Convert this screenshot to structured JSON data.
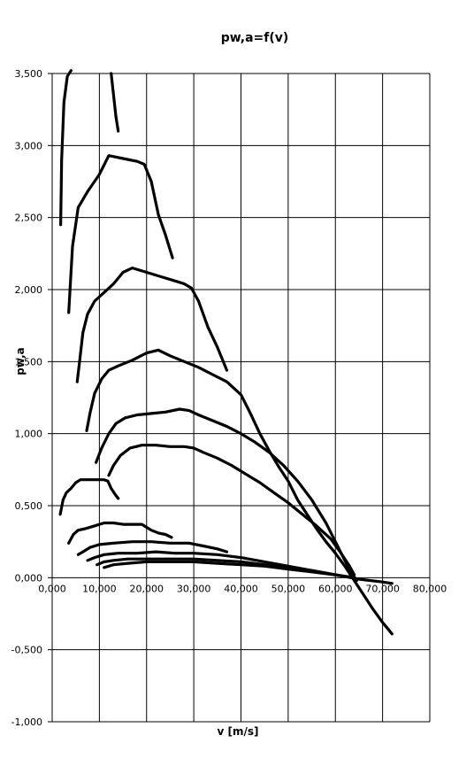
{
  "chart_data": {
    "type": "line",
    "title": "pw,a=f(v)",
    "xlabel": "v [m/s]",
    "ylabel": "pw,a",
    "xlim": [
      0,
      80
    ],
    "ylim": [
      -1,
      3.5
    ],
    "x_ticks": [
      "0,000",
      "10,000",
      "20,000",
      "30,000",
      "40,000",
      "50,000",
      "60,000",
      "70,000",
      "80,000"
    ],
    "y_ticks": [
      "3,500",
      "3,000",
      "2,500",
      "2,000",
      "1,500",
      "1,000",
      "0,500",
      "0,000",
      "-0,500",
      "-1,000"
    ],
    "grid": true,
    "legend": "none",
    "series": [
      {
        "color": "#000000",
        "x": [
          1.8,
          2.0,
          2.5,
          3.2,
          4.0
        ],
        "y": [
          2.45,
          2.9,
          3.3,
          3.48,
          3.52
        ]
      },
      {
        "color": "#000000",
        "x": [
          12.5,
          13.0,
          13.5,
          14.0
        ],
        "y": [
          3.5,
          3.35,
          3.2,
          3.1
        ]
      },
      {
        "color": "#000000",
        "x": [
          3.5,
          4.3,
          5.5,
          7.5,
          10.0,
          12.0,
          15.0,
          18.0,
          19.5,
          21.0,
          22.5,
          24.0,
          25.5
        ],
        "y": [
          1.84,
          2.3,
          2.57,
          2.68,
          2.8,
          2.93,
          2.91,
          2.89,
          2.87,
          2.75,
          2.52,
          2.38,
          2.22
        ]
      },
      {
        "color": "#000000",
        "x": [
          5.3,
          5.8,
          6.5,
          7.5,
          9.0,
          11.0,
          13.0,
          15.0,
          17.0,
          20.0,
          23.0,
          26.0,
          28.0,
          29.5,
          31.0,
          33.0,
          35.0,
          37.0
        ],
        "y": [
          1.36,
          1.5,
          1.7,
          1.83,
          1.92,
          1.98,
          2.04,
          2.12,
          2.15,
          2.12,
          2.09,
          2.06,
          2.04,
          2.01,
          1.92,
          1.74,
          1.6,
          1.44
        ]
      },
      {
        "color": "#000000",
        "x": [
          7.3,
          8.0,
          9.0,
          10.5,
          12.0,
          14.0,
          17.0,
          20.0,
          22.5,
          25.0,
          28.0,
          31.0,
          34.0,
          37.0,
          40.0,
          42.0,
          44.0,
          46.0,
          48.0,
          50.0,
          52.0,
          54.0,
          56.0,
          58.0,
          60.0,
          62.0,
          64.0,
          66.0,
          68.0,
          70.0,
          72.0
        ],
        "y": [
          1.02,
          1.14,
          1.28,
          1.38,
          1.44,
          1.47,
          1.51,
          1.56,
          1.58,
          1.54,
          1.5,
          1.46,
          1.41,
          1.36,
          1.27,
          1.14,
          1.0,
          0.88,
          0.77,
          0.67,
          0.54,
          0.44,
          0.34,
          0.25,
          0.17,
          0.08,
          -0.02,
          -0.12,
          -0.22,
          -0.31,
          -0.39
        ]
      },
      {
        "color": "#000000",
        "x": [
          9.3,
          10.5,
          12.0,
          13.5,
          15.5,
          18.0,
          21.0,
          24.0,
          27.0,
          29.0,
          31.0,
          34.0,
          37.0,
          40.0,
          43.0,
          46.0,
          49.0,
          52.0,
          55.0,
          58.0,
          60.0,
          62.0,
          63.5,
          64.5
        ],
        "y": [
          0.8,
          0.9,
          1.0,
          1.07,
          1.11,
          1.13,
          1.14,
          1.15,
          1.17,
          1.16,
          1.13,
          1.09,
          1.05,
          1.0,
          0.94,
          0.87,
          0.78,
          0.67,
          0.54,
          0.38,
          0.25,
          0.12,
          0.03,
          -0.02
        ]
      },
      {
        "color": "#000000",
        "x": [
          12.0,
          13.0,
          14.5,
          16.5,
          19.0,
          22.0,
          25.0,
          28.0,
          30.0,
          32.0,
          35.0,
          38.0,
          41.0,
          44.0,
          47.0,
          50.0,
          53.0,
          56.0,
          59.0,
          61.0,
          63.0,
          64.0
        ],
        "y": [
          0.71,
          0.78,
          0.85,
          0.9,
          0.92,
          0.92,
          0.91,
          0.91,
          0.9,
          0.87,
          0.83,
          0.78,
          0.72,
          0.66,
          0.59,
          0.52,
          0.44,
          0.36,
          0.27,
          0.18,
          0.08,
          0.02
        ]
      },
      {
        "color": "#000000",
        "x": [
          1.7,
          2.3,
          3.0,
          4.0,
          5.0,
          6.0,
          7.0,
          8.5,
          10.0,
          11.0,
          11.8,
          12.5,
          13.3,
          14.0
        ],
        "y": [
          0.44,
          0.54,
          0.59,
          0.62,
          0.66,
          0.68,
          0.68,
          0.68,
          0.68,
          0.68,
          0.67,
          0.62,
          0.58,
          0.55
        ]
      },
      {
        "color": "#000000",
        "x": [
          3.5,
          4.5,
          5.5,
          7.0,
          9.0,
          11.0,
          13.0,
          15.0,
          17.0,
          19.0,
          21.0,
          22.5,
          24.0,
          25.3
        ],
        "y": [
          0.24,
          0.3,
          0.33,
          0.34,
          0.36,
          0.38,
          0.38,
          0.37,
          0.37,
          0.37,
          0.33,
          0.31,
          0.3,
          0.28
        ]
      },
      {
        "color": "#000000",
        "x": [
          5.5,
          6.5,
          8.0,
          10.0,
          13.0,
          17.0,
          21.0,
          25.0,
          29.0,
          32.0,
          35.0,
          37.0
        ],
        "y": [
          0.16,
          0.18,
          0.21,
          0.23,
          0.24,
          0.25,
          0.25,
          0.24,
          0.24,
          0.22,
          0.2,
          0.18
        ]
      },
      {
        "color": "#000000",
        "x": [
          7.5,
          9.0,
          11.0,
          14.0,
          18.0,
          22.0,
          26.0,
          30.0,
          35.0,
          40.0,
          45.0,
          50.0,
          55.0,
          60.0,
          65.0,
          70.0,
          72.0
        ],
        "y": [
          0.12,
          0.14,
          0.16,
          0.17,
          0.17,
          0.18,
          0.17,
          0.17,
          0.16,
          0.14,
          0.11,
          0.08,
          0.05,
          0.02,
          -0.01,
          -0.03,
          -0.04
        ]
      },
      {
        "color": "#000000",
        "x": [
          9.5,
          11.0,
          13.0,
          16.0,
          20.0,
          25.0,
          30.0,
          35.0,
          40.0,
          45.0,
          50.0,
          55.0,
          60.0,
          64.0
        ],
        "y": [
          0.09,
          0.11,
          0.12,
          0.13,
          0.13,
          0.13,
          0.13,
          0.12,
          0.11,
          0.09,
          0.07,
          0.05,
          0.02,
          0.0
        ]
      },
      {
        "color": "#000000",
        "x": [
          11.0,
          13.0,
          16.0,
          20.0,
          25.0,
          30.0,
          35.0,
          40.0,
          45.0,
          50.0,
          55.0,
          60.0,
          64.0
        ],
        "y": [
          0.07,
          0.09,
          0.1,
          0.11,
          0.11,
          0.11,
          0.1,
          0.09,
          0.08,
          0.06,
          0.04,
          0.02,
          0.0
        ]
      }
    ]
  }
}
